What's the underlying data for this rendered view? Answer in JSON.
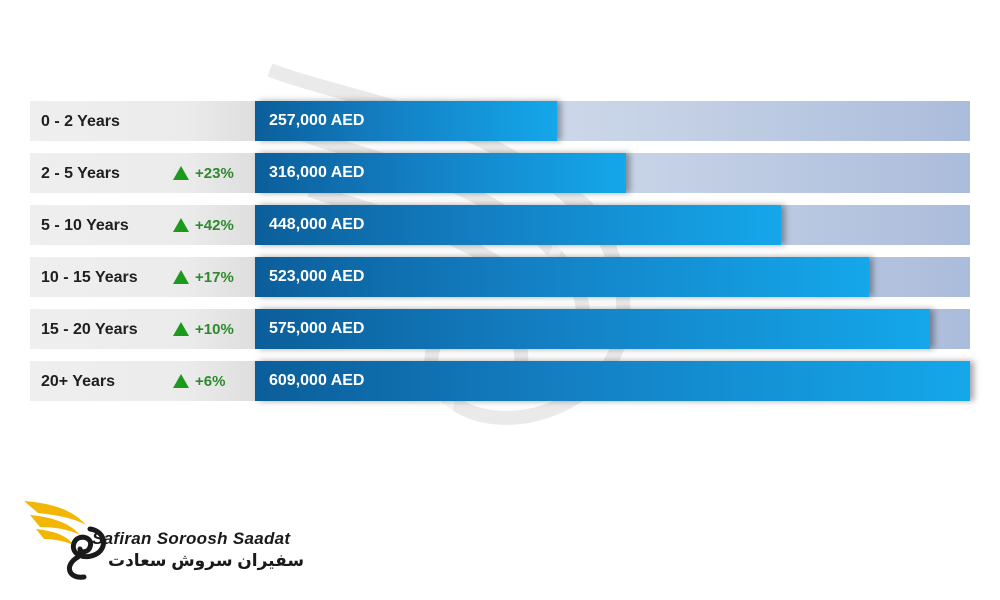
{
  "chart_data": {
    "type": "bar",
    "orientation": "horizontal",
    "categories": [
      "0 - 2 Years",
      "2 - 5 Years",
      "5 - 10 Years",
      "10 - 15 Years",
      "15 - 20 Years",
      "20+ Years"
    ],
    "values": [
      257000,
      316000,
      448000,
      523000,
      575000,
      609000
    ],
    "value_labels": [
      "257,000 AED",
      "316,000 AED",
      "448,000 AED",
      "523,000 AED",
      "575,000 AED",
      "609,000 AED"
    ],
    "growth": [
      "",
      "+23%",
      "+42%",
      "+17%",
      "+10%",
      "+6%"
    ],
    "xlim": [
      0,
      609000
    ],
    "title": "",
    "xlabel": "",
    "ylabel": "",
    "grid": false,
    "colors": {
      "bar_start": "#0b5e9a",
      "bar_end": "#14a7ea",
      "track": "#c6d2e6",
      "growth_icon": "#1c9a1c"
    }
  },
  "logo": {
    "name_en": "Safiran Soroosh Saadat",
    "name_fa": "سفیران سروش سعادت",
    "accent_color": "#f2b705"
  }
}
